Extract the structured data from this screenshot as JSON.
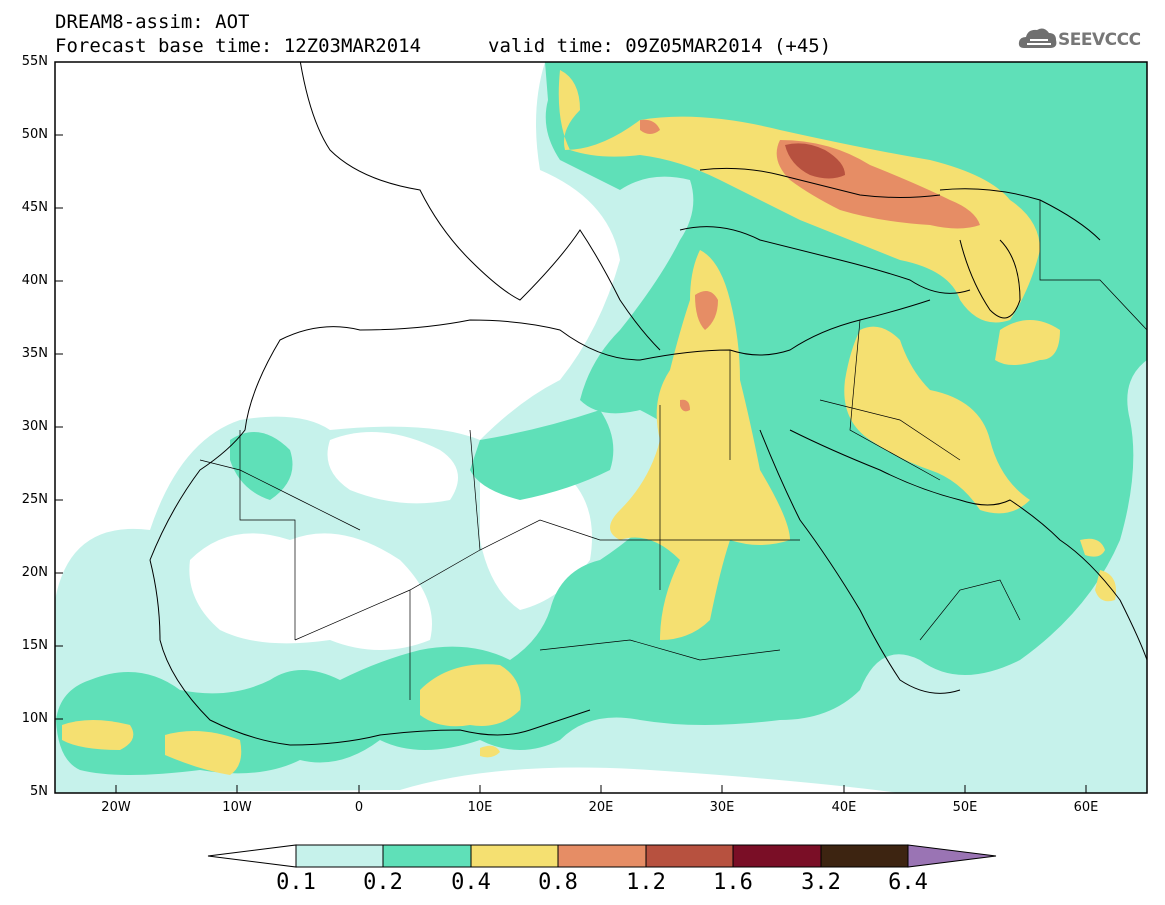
{
  "header": {
    "title_line1": "DREAM8-assim: AOT",
    "title_line2": "Forecast base time: 12Z03MAR2014",
    "valid_time": "valid time: 09Z05MAR2014 (+45)",
    "logo_text": "SEEVCCC"
  },
  "map": {
    "lat_labels": [
      "55N",
      "50N",
      "45N",
      "40N",
      "35N",
      "30N",
      "25N",
      "20N",
      "15N",
      "10N",
      "5N"
    ],
    "lon_labels": [
      "20W",
      "10W",
      "0",
      "10E",
      "20E",
      "30E",
      "40E",
      "50E",
      "60E"
    ],
    "lon_range": [
      -25,
      65
    ],
    "lat_range": [
      5,
      55
    ]
  },
  "colorbar": {
    "labels": [
      "0.1",
      "0.2",
      "0.4",
      "0.8",
      "1.2",
      "1.6",
      "3.2",
      "6.4"
    ],
    "colors": [
      "#c6f2eb",
      "#5fe0b8",
      "#f5e071",
      "#e68d65",
      "#b7513f",
      "#7a0e26",
      "#3d2411",
      "#9a74b4"
    ]
  },
  "colors": {
    "aot_0_1": "#c6f2eb",
    "aot_0_2": "#5fe0b8",
    "aot_0_4": "#f5e071",
    "aot_0_8": "#e68d65",
    "aot_1_2": "#b7513f"
  }
}
